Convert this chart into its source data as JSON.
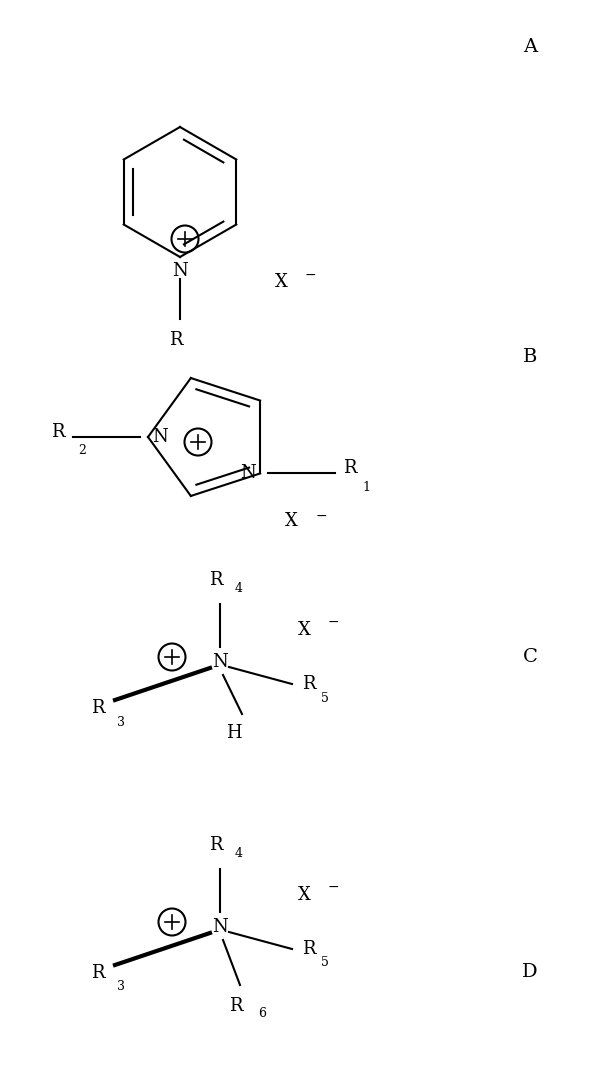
{
  "bg_color": "#ffffff",
  "label_A": "A",
  "label_B": "B",
  "label_C": "C",
  "label_D": "D",
  "label_fontsize": 14,
  "chem_fontsize": 13,
  "sub_fontsize": 9,
  "line_width": 1.5,
  "fig_width": 5.93,
  "fig_height": 10.82,
  "dpi": 100
}
